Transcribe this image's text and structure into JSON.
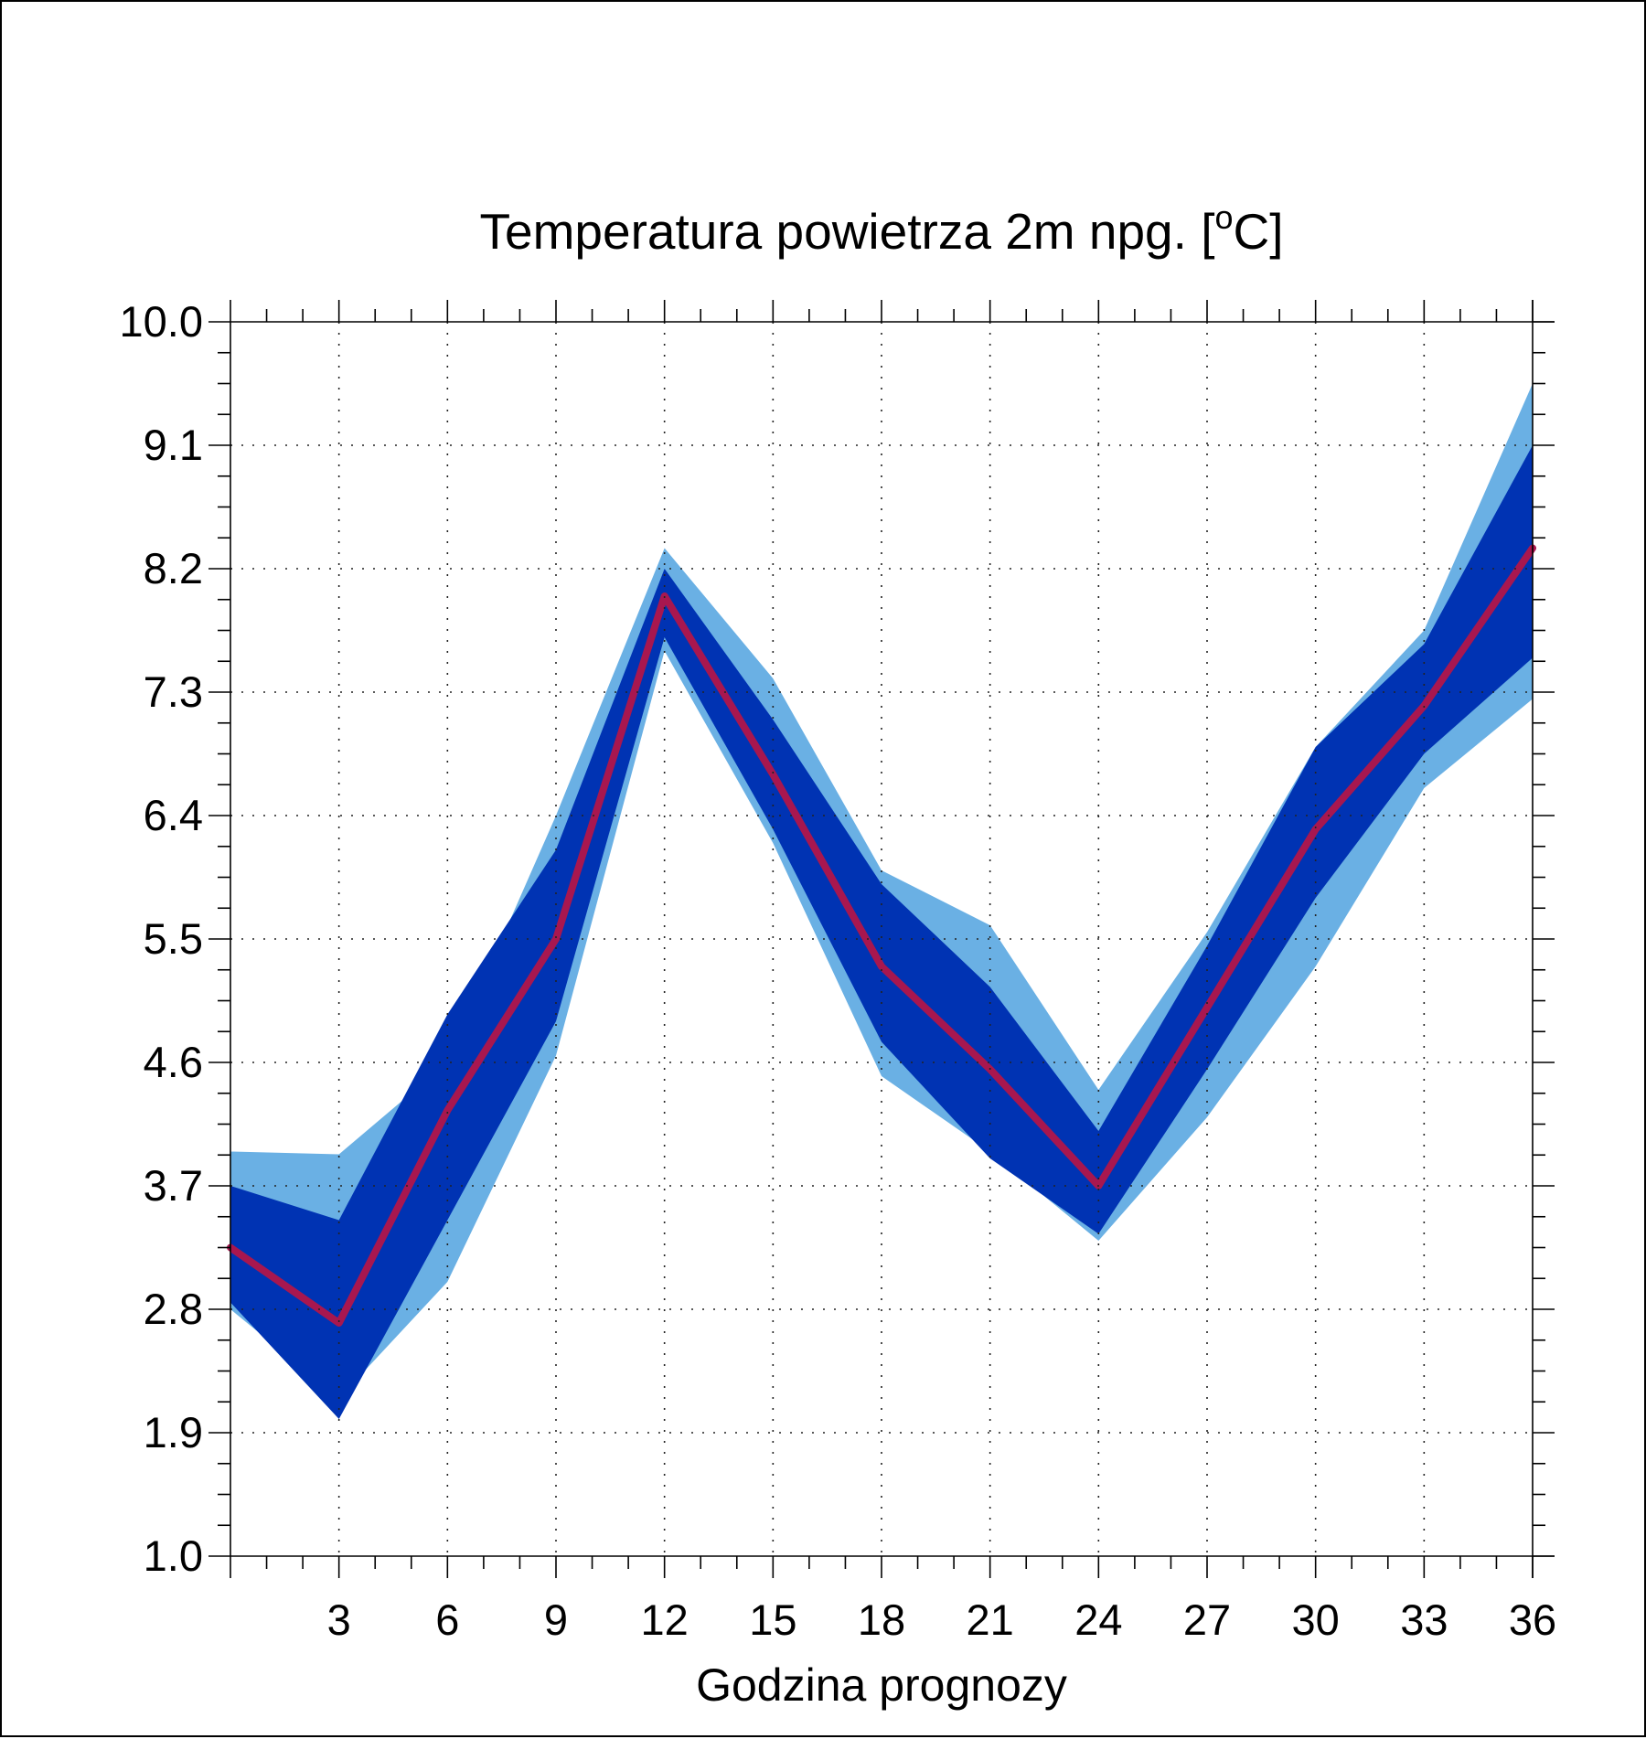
{
  "chart_data": {
    "type": "area",
    "title": "Temperatura powietrza 2m npg. [",
    "title_superscript": "o",
    "title_suffix": "C]",
    "xlabel": "Godzina prognozy",
    "ylabel": "",
    "x": [
      0,
      3,
      6,
      9,
      12,
      15,
      18,
      21,
      24,
      27,
      30,
      33,
      36
    ],
    "xlim": [
      0,
      36
    ],
    "ylim": [
      1.0,
      10.0
    ],
    "xticks": [
      "3",
      "6",
      "9",
      "12",
      "15",
      "18",
      "21",
      "24",
      "27",
      "30",
      "33",
      "36"
    ],
    "xtick_values": [
      3,
      6,
      9,
      12,
      15,
      18,
      21,
      24,
      27,
      30,
      33,
      36
    ],
    "yticks": [
      "1.0",
      "1.9",
      "2.8",
      "3.7",
      "4.6",
      "5.5",
      "6.4",
      "7.3",
      "8.2",
      "9.1",
      "10.0"
    ],
    "ytick_values": [
      1.0,
      1.9,
      2.8,
      3.7,
      4.6,
      5.5,
      6.4,
      7.3,
      8.2,
      9.1,
      10.0
    ],
    "grid": true,
    "series": [
      {
        "role": "outer-band",
        "color": "#6ab0e4",
        "upper": [
          3.95,
          3.93,
          4.6,
          6.4,
          8.35,
          7.4,
          6.0,
          5.6,
          4.4,
          5.55,
          6.9,
          7.75,
          9.55
        ],
        "lower": [
          2.8,
          2.15,
          3.0,
          4.65,
          7.6,
          6.2,
          4.5,
          3.95,
          3.3,
          4.2,
          5.3,
          6.6,
          7.25
        ]
      },
      {
        "role": "inner-band",
        "color": "#0033b3",
        "upper": [
          3.7,
          3.45,
          4.95,
          6.15,
          8.2,
          7.1,
          5.9,
          5.15,
          4.1,
          5.45,
          6.9,
          7.65,
          9.1
        ],
        "lower": [
          2.85,
          2.0,
          3.45,
          4.9,
          7.7,
          6.3,
          4.75,
          3.9,
          3.35,
          4.55,
          5.8,
          6.85,
          7.55
        ]
      },
      {
        "role": "median",
        "color": "#a8174f",
        "values": [
          3.25,
          2.7,
          4.25,
          5.5,
          8.0,
          6.7,
          5.3,
          4.55,
          3.7,
          5.0,
          6.3,
          7.2,
          8.35
        ]
      }
    ]
  }
}
